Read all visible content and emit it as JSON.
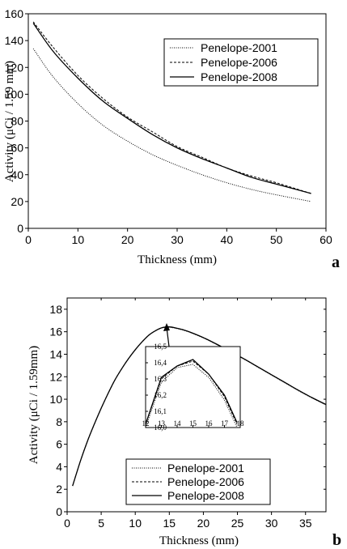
{
  "chart_data": [
    {
      "panel": "a",
      "type": "line",
      "xlabel": "Thickness (mm)",
      "ylabel": "Activity (μCi / 1.59 mm)",
      "xlim": [
        0,
        60
      ],
      "ylim": [
        0,
        160
      ],
      "xticks": [
        "0",
        "10",
        "20",
        "30",
        "40",
        "50",
        "60"
      ],
      "yticks": [
        "0",
        "20",
        "40",
        "60",
        "80",
        "100",
        "120",
        "140",
        "160"
      ],
      "legend_position": "top-right",
      "series": [
        {
          "name": "Penelope-2001",
          "style": "dotted",
          "x": [
            1,
            5,
            10,
            15,
            20,
            25,
            30,
            35,
            40,
            45,
            50,
            57
          ],
          "y": [
            134,
            113,
            93,
            77,
            65,
            55,
            47,
            40,
            34,
            29,
            25,
            20
          ]
        },
        {
          "name": "Penelope-2006",
          "style": "dashed",
          "x": [
            1,
            5,
            10,
            15,
            20,
            25,
            30,
            35,
            40,
            45,
            50,
            57
          ],
          "y": [
            154,
            135,
            114,
            97,
            83,
            72,
            61,
            53,
            45,
            39,
            34,
            26
          ]
        },
        {
          "name": "Penelope-2008",
          "style": "solid",
          "x": [
            1,
            5,
            10,
            15,
            20,
            25,
            30,
            35,
            40,
            45,
            50,
            57
          ],
          "y": [
            153,
            132,
            112,
            95,
            82,
            70,
            60,
            52,
            45,
            38,
            33,
            26
          ]
        }
      ]
    },
    {
      "panel": "b",
      "type": "line",
      "xlabel": "Thickness (mm)",
      "ylabel": "Activity (μCi / 1.59mm)",
      "xlim": [
        0,
        38
      ],
      "ylim": [
        0,
        19
      ],
      "xticks": [
        "0",
        "5",
        "10",
        "15",
        "20",
        "25",
        "30",
        "35"
      ],
      "yticks": [
        "0",
        "2",
        "4",
        "6",
        "8",
        "10",
        "12",
        "14",
        "16",
        "18"
      ],
      "legend_position": "bottom-center",
      "series": [
        {
          "name": "Penelope-2001",
          "style": "dotted",
          "x": [
            0.8,
            2,
            3,
            4,
            5,
            6,
            7,
            8,
            9,
            10,
            11,
            12,
            13,
            14,
            15,
            16,
            17,
            18,
            20,
            22,
            24,
            26,
            28,
            30,
            32,
            34,
            36,
            38
          ],
          "y": [
            2.3,
            4.6,
            6.3,
            7.8,
            9.2,
            10.5,
            11.7,
            12.7,
            13.6,
            14.4,
            15.1,
            15.7,
            16.1,
            16.35,
            16.4,
            16.3,
            16.15,
            15.95,
            15.45,
            14.85,
            14.2,
            13.55,
            12.85,
            12.15,
            11.45,
            10.75,
            10.1,
            9.5
          ]
        },
        {
          "name": "Penelope-2006",
          "style": "dashed",
          "x": [
            0.8,
            2,
            3,
            4,
            5,
            6,
            7,
            8,
            9,
            10,
            11,
            12,
            13,
            14,
            15,
            16,
            17,
            18,
            20,
            22,
            24,
            26,
            28,
            30,
            32,
            34,
            36,
            38
          ],
          "y": [
            2.3,
            4.6,
            6.3,
            7.8,
            9.2,
            10.5,
            11.7,
            12.7,
            13.6,
            14.4,
            15.1,
            15.7,
            16.1,
            16.37,
            16.42,
            16.32,
            16.17,
            15.97,
            15.47,
            14.87,
            14.22,
            13.57,
            12.87,
            12.17,
            11.47,
            10.77,
            10.12,
            9.52
          ]
        },
        {
          "name": "Penelope-2008",
          "style": "solid",
          "x": [
            0.8,
            2,
            3,
            4,
            5,
            6,
            7,
            8,
            9,
            10,
            11,
            12,
            13,
            14,
            15,
            16,
            17,
            18,
            20,
            22,
            24,
            26,
            28,
            30,
            32,
            34,
            36,
            38
          ],
          "y": [
            2.3,
            4.6,
            6.3,
            7.8,
            9.2,
            10.5,
            11.7,
            12.7,
            13.6,
            14.4,
            15.1,
            15.7,
            16.1,
            16.37,
            16.43,
            16.33,
            16.18,
            15.98,
            15.48,
            14.88,
            14.23,
            13.58,
            12.88,
            12.18,
            11.48,
            10.78,
            10.13,
            9.53
          ]
        }
      ],
      "inset": {
        "xlim": [
          12,
          18
        ],
        "ylim": [
          16.0,
          16.5
        ],
        "xticks": [
          "12",
          "13",
          "14",
          "15",
          "16",
          "17",
          "18"
        ],
        "yticks": [
          "16,0",
          "16,1",
          "16,2",
          "16,3",
          "16,4",
          "16,5"
        ],
        "series": [
          {
            "name": "Penelope-2001",
            "style": "dotted",
            "x": [
              12,
              13,
              14,
              15,
              16,
              17,
              17.8
            ],
            "y": [
              16.0,
              16.28,
              16.37,
              16.39,
              16.31,
              16.17,
              16.0
            ]
          },
          {
            "name": "Penelope-2006",
            "style": "dashed",
            "x": [
              12,
              13,
              14,
              15,
              16,
              17,
              17.8
            ],
            "y": [
              16.02,
              16.3,
              16.38,
              16.41,
              16.33,
              16.19,
              16.02
            ]
          },
          {
            "name": "Penelope-2008",
            "style": "solid",
            "x": [
              12,
              13,
              14,
              15,
              16,
              17,
              17.8
            ],
            "y": [
              16.02,
              16.31,
              16.38,
              16.42,
              16.33,
              16.2,
              16.03
            ]
          }
        ]
      }
    }
  ]
}
